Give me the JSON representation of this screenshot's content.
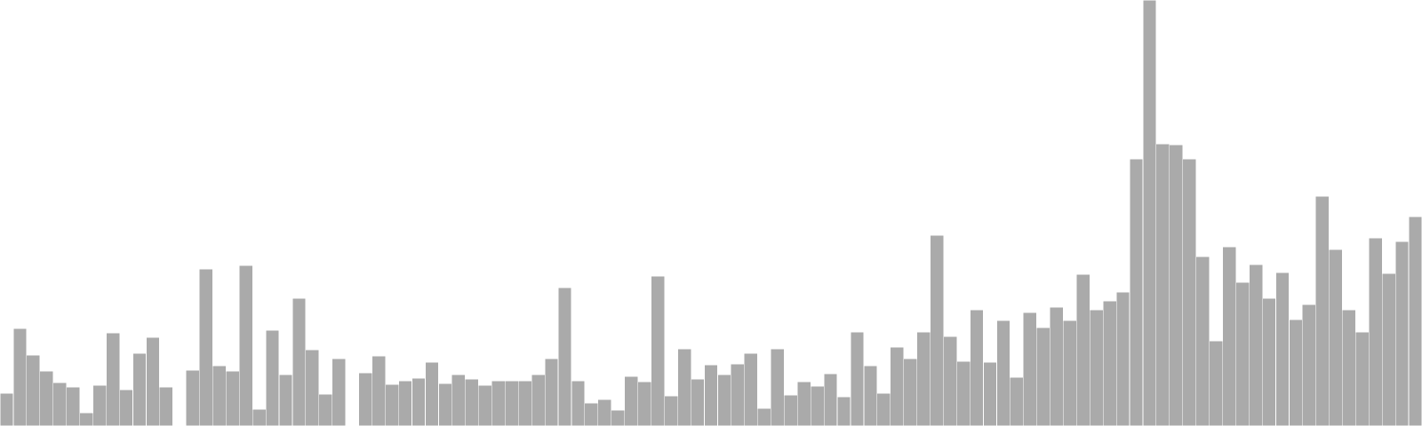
{
  "chart_data": {
    "type": "bar",
    "title": "",
    "xlabel": "",
    "ylabel": "",
    "ylim": [
      0,
      480
    ],
    "grid": false,
    "axes_visible": false,
    "bar_color": "#aaaaaa",
    "bar_edge_color": "#ffffff",
    "values": [
      37,
      110,
      80,
      62,
      49,
      44,
      15,
      46,
      105,
      41,
      82,
      100,
      44,
      null,
      63,
      177,
      68,
      62,
      181,
      19,
      108,
      58,
      144,
      86,
      36,
      76,
      null,
      60,
      79,
      47,
      51,
      54,
      72,
      48,
      58,
      53,
      46,
      51,
      51,
      51,
      58,
      76,
      156,
      51,
      26,
      30,
      18,
      56,
      50,
      169,
      34,
      87,
      53,
      69,
      58,
      70,
      82,
      20,
      87,
      35,
      50,
      45,
      59,
      33,
      106,
      68,
      37,
      89,
      76,
      106,
      215,
      101,
      73,
      131,
      72,
      119,
      55,
      128,
      111,
      134,
      119,
      171,
      131,
      141,
      151,
      301,
      480,
      318,
      317,
      301,
      191,
      96,
      202,
      162,
      182,
      144,
      173,
      120,
      137,
      259,
      199,
      131,
      106,
      212,
      172,
      208,
      236
    ]
  }
}
